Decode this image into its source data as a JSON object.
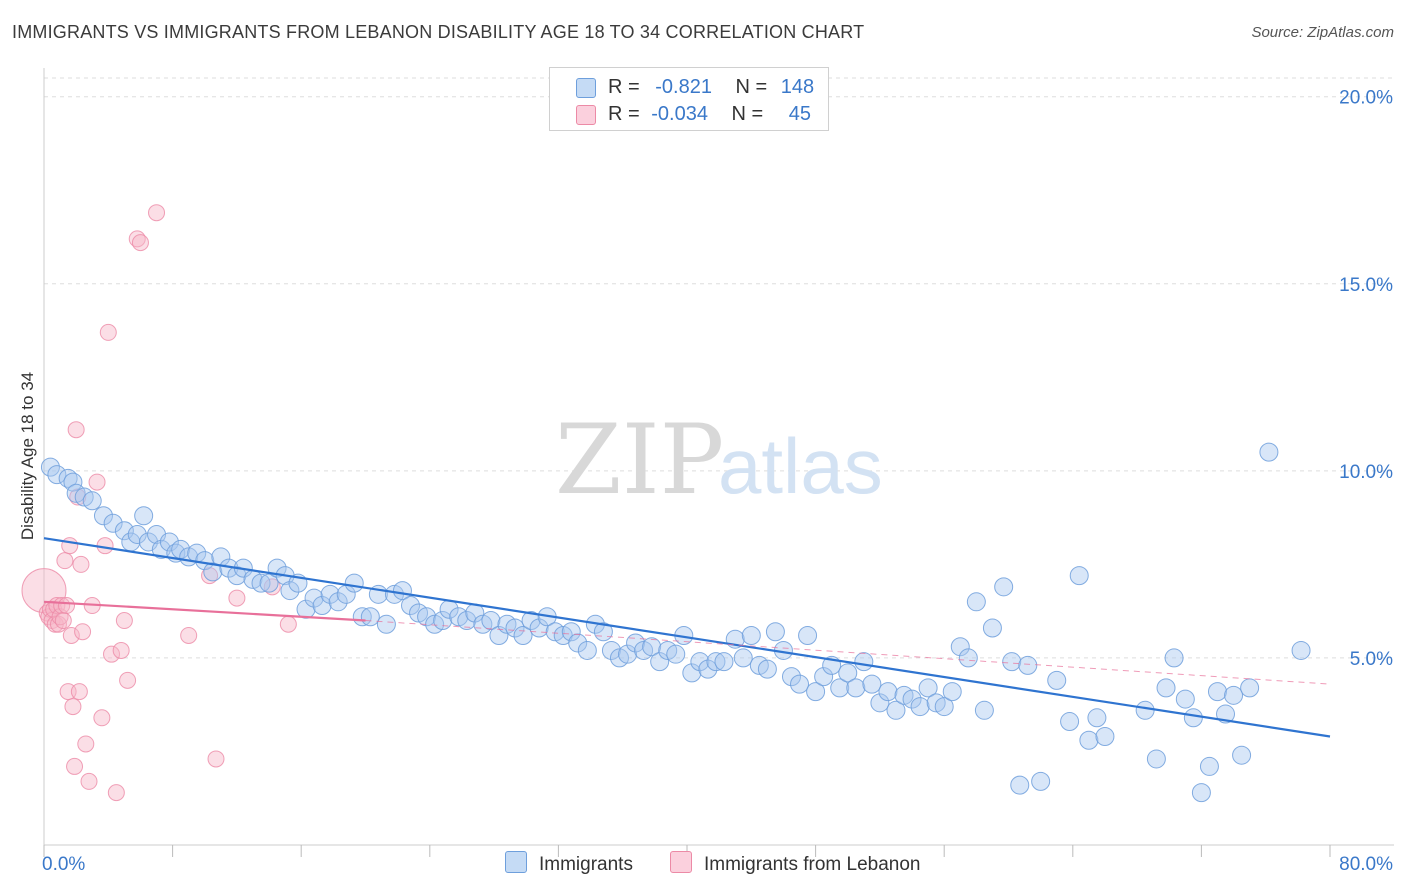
{
  "title": "IMMIGRANTS VS IMMIGRANTS FROM LEBANON DISABILITY AGE 18 TO 34 CORRELATION CHART",
  "source": "Source: ZipAtlas.com",
  "watermark": {
    "zip": "ZIP",
    "atlas": "atlas"
  },
  "colors": {
    "blue_fill": "#a8c8f0",
    "blue_stroke": "#6e9fdc",
    "blue_line": "#2f74d0",
    "pink_fill": "#f7b6c8",
    "pink_stroke": "#ec8aa6",
    "pink_line": "#e8709a",
    "value_text": "#3a78c9",
    "grid": "#dddddd"
  },
  "legend": {
    "rows": [
      {
        "r_label": "R =",
        "r_value": "-0.821",
        "n_label": "N =",
        "n_value": "148"
      },
      {
        "r_label": "R =",
        "r_value": "-0.034",
        "n_label": "N =",
        "n_value": "45"
      }
    ]
  },
  "bottom_legend": [
    "Immigrants",
    "Immigrants from Lebanon"
  ],
  "chart_data": {
    "type": "scatter",
    "title": "IMMIGRANTS VS IMMIGRANTS FROM LEBANON DISABILITY AGE 18 TO 34 CORRELATION CHART",
    "xlabel": "",
    "ylabel": "Disability Age 18 to 34",
    "xlim": [
      0,
      80
    ],
    "ylim": [
      0,
      20.5
    ],
    "x_tick_labels": [
      "0.0%",
      "80.0%"
    ],
    "y_ticks": [
      5,
      10,
      15,
      20
    ],
    "y_tick_labels": [
      "5.0%",
      "10.0%",
      "15.0%",
      "20.0%"
    ],
    "grid": true,
    "series": [
      {
        "name": "Immigrants",
        "r": -0.821,
        "n": 148,
        "trend": {
          "x": [
            0,
            80
          ],
          "y": [
            8.2,
            2.9
          ]
        },
        "points": [
          [
            0.4,
            10.1
          ],
          [
            0.8,
            9.9
          ],
          [
            1.5,
            9.8
          ],
          [
            1.8,
            9.7
          ],
          [
            2.0,
            9.4
          ],
          [
            2.5,
            9.3
          ],
          [
            3.0,
            9.2
          ],
          [
            3.7,
            8.8
          ],
          [
            4.3,
            8.6
          ],
          [
            5.0,
            8.4
          ],
          [
            5.4,
            8.1
          ],
          [
            5.8,
            8.3
          ],
          [
            6.2,
            8.8
          ],
          [
            6.5,
            8.1
          ],
          [
            7.0,
            8.3
          ],
          [
            7.3,
            7.9
          ],
          [
            7.8,
            8.1
          ],
          [
            8.2,
            7.8
          ],
          [
            8.5,
            7.9
          ],
          [
            9.0,
            7.7
          ],
          [
            9.5,
            7.8
          ],
          [
            10.0,
            7.6
          ],
          [
            10.5,
            7.3
          ],
          [
            11.0,
            7.7
          ],
          [
            11.5,
            7.4
          ],
          [
            12.0,
            7.2
          ],
          [
            12.4,
            7.4
          ],
          [
            13.0,
            7.1
          ],
          [
            13.5,
            7.0
          ],
          [
            14.0,
            7.0
          ],
          [
            14.5,
            7.4
          ],
          [
            15.0,
            7.2
          ],
          [
            15.3,
            6.8
          ],
          [
            15.8,
            7.0
          ],
          [
            16.3,
            6.3
          ],
          [
            16.8,
            6.6
          ],
          [
            17.3,
            6.4
          ],
          [
            17.8,
            6.7
          ],
          [
            18.3,
            6.5
          ],
          [
            18.8,
            6.7
          ],
          [
            19.3,
            7.0
          ],
          [
            19.8,
            6.1
          ],
          [
            20.3,
            6.1
          ],
          [
            20.8,
            6.7
          ],
          [
            21.3,
            5.9
          ],
          [
            21.8,
            6.7
          ],
          [
            22.3,
            6.8
          ],
          [
            22.8,
            6.4
          ],
          [
            23.3,
            6.2
          ],
          [
            23.8,
            6.1
          ],
          [
            24.3,
            5.9
          ],
          [
            24.8,
            6.0
          ],
          [
            25.2,
            6.3
          ],
          [
            25.8,
            6.1
          ],
          [
            26.3,
            6.0
          ],
          [
            26.8,
            6.2
          ],
          [
            27.3,
            5.9
          ],
          [
            27.8,
            6.0
          ],
          [
            28.3,
            5.6
          ],
          [
            28.8,
            5.9
          ],
          [
            29.3,
            5.8
          ],
          [
            29.8,
            5.6
          ],
          [
            30.3,
            6.0
          ],
          [
            30.8,
            5.8
          ],
          [
            31.3,
            6.1
          ],
          [
            31.8,
            5.7
          ],
          [
            32.3,
            5.6
          ],
          [
            32.8,
            5.7
          ],
          [
            33.2,
            5.4
          ],
          [
            33.8,
            5.2
          ],
          [
            34.3,
            5.9
          ],
          [
            34.8,
            5.7
          ],
          [
            35.3,
            5.2
          ],
          [
            35.8,
            5.0
          ],
          [
            36.3,
            5.1
          ],
          [
            36.8,
            5.4
          ],
          [
            37.3,
            5.2
          ],
          [
            37.8,
            5.3
          ],
          [
            38.3,
            4.9
          ],
          [
            38.8,
            5.2
          ],
          [
            39.3,
            5.1
          ],
          [
            39.8,
            5.6
          ],
          [
            40.3,
            4.6
          ],
          [
            40.8,
            4.9
          ],
          [
            41.3,
            4.7
          ],
          [
            41.8,
            4.9
          ],
          [
            42.3,
            4.9
          ],
          [
            43.0,
            5.5
          ],
          [
            43.5,
            5.0
          ],
          [
            44.0,
            5.6
          ],
          [
            44.5,
            4.8
          ],
          [
            45.0,
            4.7
          ],
          [
            45.5,
            5.7
          ],
          [
            46.0,
            5.2
          ],
          [
            46.5,
            4.5
          ],
          [
            47.0,
            4.3
          ],
          [
            47.5,
            5.6
          ],
          [
            48.0,
            4.1
          ],
          [
            48.5,
            4.5
          ],
          [
            49.0,
            4.8
          ],
          [
            49.5,
            4.2
          ],
          [
            50.0,
            4.6
          ],
          [
            50.5,
            4.2
          ],
          [
            51.0,
            4.9
          ],
          [
            51.5,
            4.3
          ],
          [
            52.0,
            3.8
          ],
          [
            52.5,
            4.1
          ],
          [
            53.0,
            3.6
          ],
          [
            53.5,
            4.0
          ],
          [
            54.0,
            3.9
          ],
          [
            54.5,
            3.7
          ],
          [
            55.0,
            4.2
          ],
          [
            55.5,
            3.8
          ],
          [
            56.0,
            3.7
          ],
          [
            56.5,
            4.1
          ],
          [
            57.0,
            5.3
          ],
          [
            57.5,
            5.0
          ],
          [
            58.0,
            6.5
          ],
          [
            58.5,
            3.6
          ],
          [
            59.0,
            5.8
          ],
          [
            59.7,
            6.9
          ],
          [
            60.2,
            4.9
          ],
          [
            60.7,
            1.6
          ],
          [
            61.2,
            4.8
          ],
          [
            62.0,
            1.7
          ],
          [
            63.0,
            4.4
          ],
          [
            63.8,
            3.3
          ],
          [
            64.4,
            7.2
          ],
          [
            65.0,
            2.8
          ],
          [
            65.5,
            3.4
          ],
          [
            66.0,
            2.9
          ],
          [
            68.5,
            3.6
          ],
          [
            69.2,
            2.3
          ],
          [
            69.8,
            4.2
          ],
          [
            70.3,
            5.0
          ],
          [
            71.0,
            3.9
          ],
          [
            71.5,
            3.4
          ],
          [
            72.0,
            1.4
          ],
          [
            72.5,
            2.1
          ],
          [
            73.0,
            4.1
          ],
          [
            73.5,
            3.5
          ],
          [
            74.0,
            4.0
          ],
          [
            74.5,
            2.4
          ],
          [
            75.0,
            4.2
          ],
          [
            76.2,
            10.5
          ],
          [
            78.2,
            5.2
          ]
        ]
      },
      {
        "name": "Immigrants from Lebanon",
        "r": -0.034,
        "n": 45,
        "trend": {
          "x": [
            0,
            20
          ],
          "y": [
            6.5,
            6.0
          ]
        },
        "trend_dashed": {
          "x": [
            20,
            80
          ],
          "y": [
            6.0,
            4.3
          ]
        },
        "points": [
          [
            0.0,
            6.8
          ],
          [
            0.2,
            6.2
          ],
          [
            0.3,
            6.1
          ],
          [
            0.4,
            6.3
          ],
          [
            0.5,
            6.0
          ],
          [
            0.6,
            6.3
          ],
          [
            0.7,
            5.9
          ],
          [
            0.8,
            6.4
          ],
          [
            0.9,
            5.9
          ],
          [
            1.0,
            6.1
          ],
          [
            1.1,
            6.4
          ],
          [
            1.2,
            6.0
          ],
          [
            1.3,
            7.6
          ],
          [
            1.4,
            6.4
          ],
          [
            1.5,
            4.1
          ],
          [
            1.6,
            8.0
          ],
          [
            1.7,
            5.6
          ],
          [
            1.8,
            3.7
          ],
          [
            1.9,
            2.1
          ],
          [
            2.0,
            11.1
          ],
          [
            2.1,
            9.3
          ],
          [
            2.2,
            4.1
          ],
          [
            2.3,
            7.5
          ],
          [
            2.4,
            5.7
          ],
          [
            2.6,
            2.7
          ],
          [
            2.8,
            1.7
          ],
          [
            3.0,
            6.4
          ],
          [
            3.3,
            9.7
          ],
          [
            3.6,
            3.4
          ],
          [
            3.8,
            8.0
          ],
          [
            4.0,
            13.7
          ],
          [
            4.2,
            5.1
          ],
          [
            4.5,
            1.4
          ],
          [
            4.8,
            5.2
          ],
          [
            5.0,
            6.0
          ],
          [
            5.2,
            4.4
          ],
          [
            5.8,
            16.2
          ],
          [
            6.0,
            16.1
          ],
          [
            7.0,
            16.9
          ],
          [
            9.0,
            5.6
          ],
          [
            10.3,
            7.2
          ],
          [
            10.7,
            2.3
          ],
          [
            12.0,
            6.6
          ],
          [
            14.2,
            6.9
          ],
          [
            15.2,
            5.9
          ]
        ]
      }
    ]
  }
}
